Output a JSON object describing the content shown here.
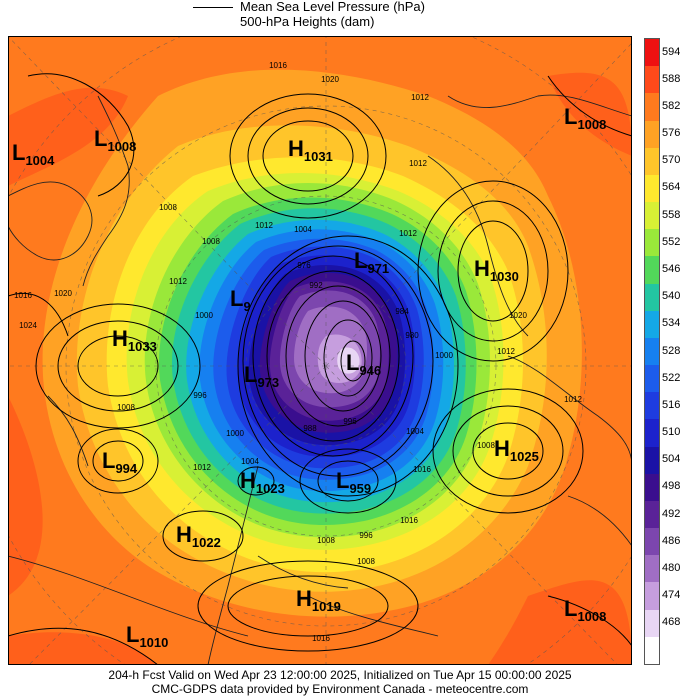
{
  "header": {
    "legend_line_1": "Mean Sea Level Pressure (hPa)",
    "legend_line_2": "500-hPa Heights (dam)"
  },
  "footer": {
    "line_1": "204-h Fcst Valid on Wed Apr 23 12:00:00 2025, Initialized on Tue Apr 15 00:00:00 2025",
    "line_2": "CMC-GDPS data provided by Environment Canada - meteocentre.com"
  },
  "colorbar": {
    "levels": [
      {
        "value": "594",
        "color": "#ee1111"
      },
      {
        "value": "588",
        "color": "#ff4a1a"
      },
      {
        "value": "582",
        "color": "#ff7a1e"
      },
      {
        "value": "576",
        "color": "#ffa224"
      },
      {
        "value": "570",
        "color": "#ffc52a"
      },
      {
        "value": "564",
        "color": "#ffe82e"
      },
      {
        "value": "558",
        "color": "#d8f035"
      },
      {
        "value": "552",
        "color": "#9ae83a"
      },
      {
        "value": "546",
        "color": "#52d85a"
      },
      {
        "value": "540",
        "color": "#23c6a2"
      },
      {
        "value": "534",
        "color": "#14a8e6"
      },
      {
        "value": "528",
        "color": "#1680f0"
      },
      {
        "value": "522",
        "color": "#1c5cec"
      },
      {
        "value": "516",
        "color": "#1e3ce0"
      },
      {
        "value": "510",
        "color": "#1c22cc"
      },
      {
        "value": "504",
        "color": "#1a12a6"
      },
      {
        "value": "498",
        "color": "#3a0e8e"
      },
      {
        "value": "492",
        "color": "#5a2298"
      },
      {
        "value": "486",
        "color": "#7c46ae"
      },
      {
        "value": "480",
        "color": "#a06ec4"
      },
      {
        "value": "474",
        "color": "#c69ede"
      },
      {
        "value": "468",
        "color": "#e8d6f4"
      },
      {
        "value": "",
        "color": "#ffffff"
      }
    ]
  },
  "pressure_systems": [
    {
      "type": "L",
      "value": "1004"
    },
    {
      "type": "L",
      "value": "1008"
    },
    {
      "type": "H",
      "value": "1031"
    },
    {
      "type": "L",
      "value": "1008"
    },
    {
      "type": "H",
      "value": "1030"
    },
    {
      "type": "H",
      "value": "1033"
    },
    {
      "type": "L",
      "value": "971"
    },
    {
      "type": "L",
      "value": "9"
    },
    {
      "type": "L",
      "value": "946"
    },
    {
      "type": "L",
      "value": "973"
    },
    {
      "type": "L",
      "value": "994"
    },
    {
      "type": "H",
      "value": "1023"
    },
    {
      "type": "L",
      "value": "959"
    },
    {
      "type": "H",
      "value": "1025"
    },
    {
      "type": "H",
      "value": "1022"
    },
    {
      "type": "H",
      "value": "1019"
    },
    {
      "type": "L",
      "value": "1008"
    },
    {
      "type": "L",
      "value": "1010"
    }
  ],
  "isobar_labels": [
    "1016",
    "1020",
    "1012",
    "1008",
    "1004",
    "1016",
    "1020",
    "1024",
    "1012",
    "1000",
    "996",
    "1008",
    "1012",
    "1012",
    "1008",
    "1012",
    "1020",
    "1012",
    "1000",
    "1004",
    "1008",
    "1012",
    "996",
    "1000",
    "1016",
    "1012",
    "1016",
    "1008",
    "996",
    "1008",
    "988",
    "984",
    "980",
    "976",
    "992",
    "1004",
    "1016"
  ]
}
